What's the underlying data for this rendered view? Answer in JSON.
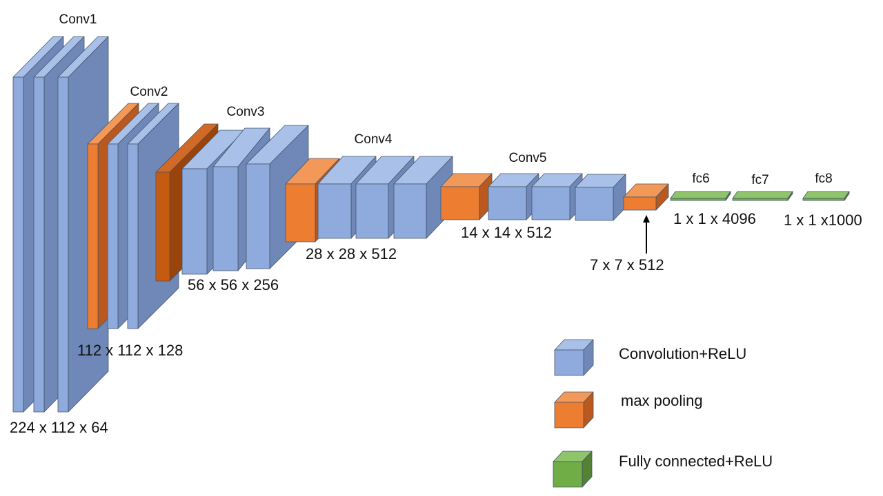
{
  "colors": {
    "conv_front": "#8faadc",
    "conv_top": "#a9c0e8",
    "conv_side": "#6f88b8",
    "pool_front": "#ed7d31",
    "pool_top": "#f2995a",
    "pool_side": "#b9591f",
    "pool_dark_front": "#c55a11",
    "pool_dark_top": "#d06a26",
    "pool_dark_side": "#9a430b",
    "fc_front": "#70ad47",
    "fc_top": "#8fc46b",
    "fc_side": "#548235",
    "edge": "#44546a",
    "arrow": "#000000"
  },
  "groups": {
    "conv1": "Conv1",
    "conv2": "Conv2",
    "conv3": "Conv3",
    "conv4": "Conv4",
    "conv5": "Conv5",
    "fc6": "fc6",
    "fc7": "fc7",
    "fc8": "fc8"
  },
  "dimensions": {
    "conv1": "224 x 112 x 64",
    "conv2": "112 x 112 x 128",
    "conv3": "56 x 56 x 256",
    "conv4": "28 x 28 x 512",
    "conv5": "14 x 14 x 512",
    "pool5": "7 x 7 x 512",
    "fc": "1 x 1 x 4096",
    "fc8": "1 x 1 x1000"
  },
  "legend": {
    "conv": "Convolution+ReLU",
    "pool": "max pooling",
    "fc": "Fully connected+ReLU"
  }
}
